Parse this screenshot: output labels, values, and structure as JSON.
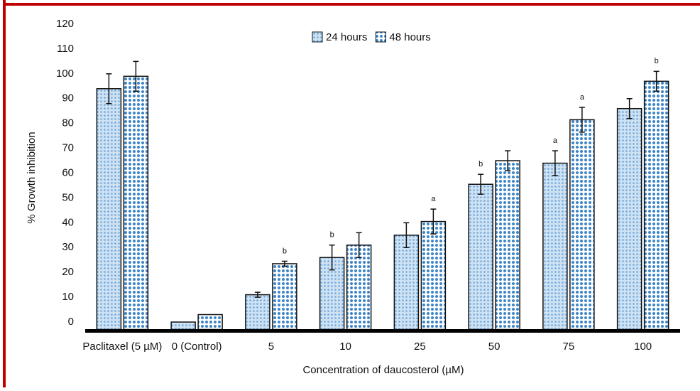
{
  "chart_data": {
    "type": "bar",
    "y_label": "% Growth inhibition",
    "x_label": "Concentration of daucosterol (µM)",
    "categories": [
      "Paclitaxel (5 µM)",
      "0 (Control)",
      "5",
      "10",
      "25",
      "50",
      "75",
      "100"
    ],
    "series": [
      {
        "name": "24 hours",
        "color": "#6fa8dc",
        "values": [
          94,
          0,
          11,
          26,
          35,
          55.5,
          64,
          86
        ],
        "errors": [
          6,
          0,
          1,
          5,
          5,
          4,
          5,
          4
        ],
        "annotations": [
          null,
          null,
          null,
          "b",
          null,
          "b",
          "a",
          null
        ]
      },
      {
        "name": "48 hours",
        "color": "#3d85c6",
        "values": [
          99,
          3,
          23.5,
          31,
          40.5,
          65,
          81.5,
          97
        ],
        "errors": [
          6,
          0,
          1,
          5,
          5,
          4,
          5,
          4
        ],
        "annotations": [
          null,
          null,
          "b",
          null,
          "a",
          null,
          "a",
          "b"
        ]
      }
    ],
    "ylim": [
      -3,
      120
    ],
    "yticks": [
      0,
      10,
      20,
      30,
      40,
      50,
      60,
      70,
      80,
      90,
      100,
      110,
      120
    ],
    "legend": "top"
  }
}
